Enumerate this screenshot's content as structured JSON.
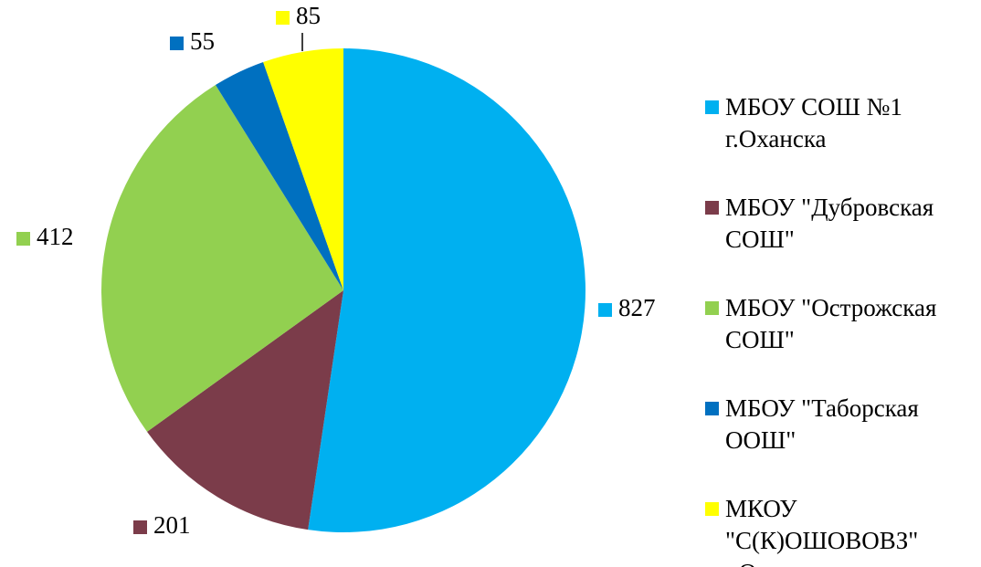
{
  "chart_data": {
    "type": "pie",
    "categories": [
      "МБОУ СОШ №1 г.Оханска",
      "МБОУ \"Дубровская СОШ\"",
      "МБОУ \"Острожская СОШ\"",
      "МБОУ \"Таборская ООШ\"",
      "МКОУ \"С(К)ОШОВОВЗ\" г.Оханска"
    ],
    "values": [
      827,
      201,
      412,
      55,
      85
    ],
    "colors": [
      "#00b0f0",
      "#7b3c4a",
      "#92d050",
      "#0070c0",
      "#ffff00"
    ],
    "legend": "right"
  }
}
